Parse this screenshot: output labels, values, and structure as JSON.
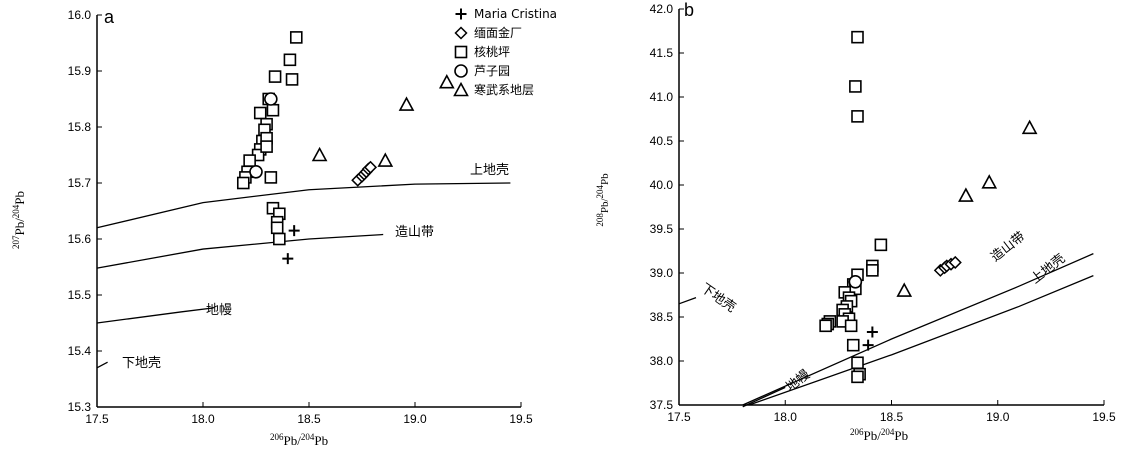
{
  "chart_data": [
    {
      "panel": "a",
      "type": "scatter",
      "xlim": [
        17.5,
        19.5
      ],
      "ylim": [
        15.3,
        16.0
      ],
      "xticks": [
        "17.5",
        "18.0",
        "18.5",
        "19.0",
        "19.5"
      ],
      "yticks": [
        "15.3",
        "15.4",
        "15.5",
        "15.6",
        "15.7",
        "15.8",
        "15.9",
        "16.0"
      ],
      "xlabel": {
        "sup1": "206",
        "mid": "Pb/",
        "sup2": "204",
        "end": "Pb"
      },
      "ylabel": {
        "sup1": "207",
        "mid": "Pb/",
        "sup2": "204",
        "end": "Pb"
      },
      "legend": [
        {
          "marker": "plus",
          "label": "Maria Cristina"
        },
        {
          "marker": "diamond",
          "label": "缅面金厂"
        },
        {
          "marker": "square",
          "label": "核桃坪"
        },
        {
          "marker": "circle",
          "label": "芦子园"
        },
        {
          "marker": "triangle",
          "label": "寒武系地层"
        }
      ],
      "curves": [
        {
          "name": "上地壳",
          "points": [
            [
              17.5,
              15.62
            ],
            [
              18.0,
              15.665
            ],
            [
              18.5,
              15.688
            ],
            [
              19.0,
              15.698
            ],
            [
              19.45,
              15.7
            ]
          ]
        },
        {
          "name": "造山带",
          "points": [
            [
              17.5,
              15.548
            ],
            [
              18.0,
              15.582
            ],
            [
              18.5,
              15.6
            ],
            [
              18.85,
              15.608
            ]
          ]
        },
        {
          "name": "地幔",
          "points": [
            [
              17.5,
              15.45
            ],
            [
              17.9,
              15.47
            ],
            [
              18.05,
              15.477
            ]
          ]
        },
        {
          "name": "下地壳",
          "points": [
            [
              17.5,
              15.37
            ],
            [
              17.55,
              15.38
            ]
          ]
        }
      ],
      "series": [
        {
          "name": "Maria Cristina",
          "marker": "plus",
          "points": [
            [
              18.43,
              15.615
            ],
            [
              18.4,
              15.565
            ]
          ]
        },
        {
          "name": "缅面金厂",
          "marker": "diamond",
          "points": [
            [
              18.73,
              15.705
            ],
            [
              18.75,
              15.712
            ],
            [
              18.76,
              15.716
            ],
            [
              18.77,
              15.72
            ],
            [
              18.78,
              15.725
            ],
            [
              18.79,
              15.728
            ]
          ]
        },
        {
          "name": "核桃坪",
          "marker": "square",
          "points": [
            [
              18.44,
              15.96
            ],
            [
              18.41,
              15.92
            ],
            [
              18.42,
              15.885
            ],
            [
              18.34,
              15.89
            ],
            [
              18.31,
              15.85
            ],
            [
              18.33,
              15.83
            ],
            [
              18.27,
              15.825
            ],
            [
              18.3,
              15.805
            ],
            [
              18.29,
              15.795
            ],
            [
              18.28,
              15.775
            ],
            [
              18.3,
              15.78
            ],
            [
              18.27,
              15.76
            ],
            [
              18.26,
              15.75
            ],
            [
              18.3,
              15.765
            ],
            [
              18.22,
              15.74
            ],
            [
              18.21,
              15.72
            ],
            [
              18.2,
              15.71
            ],
            [
              18.19,
              15.7
            ],
            [
              18.32,
              15.71
            ],
            [
              18.33,
              15.655
            ],
            [
              18.36,
              15.645
            ],
            [
              18.35,
              15.63
            ],
            [
              18.35,
              15.62
            ],
            [
              18.36,
              15.6
            ]
          ]
        },
        {
          "name": "芦子园",
          "marker": "circle",
          "points": [
            [
              18.32,
              15.85
            ],
            [
              18.25,
              15.72
            ]
          ]
        },
        {
          "name": "寒武系地层",
          "marker": "triangle",
          "points": [
            [
              19.15,
              15.88
            ],
            [
              18.96,
              15.84
            ],
            [
              18.55,
              15.75
            ],
            [
              18.86,
              15.74
            ]
          ]
        }
      ]
    },
    {
      "panel": "b",
      "type": "scatter",
      "xlim": [
        17.5,
        19.5
      ],
      "ylim": [
        37.5,
        42.0
      ],
      "xticks": [
        "17.5",
        "18.0",
        "18.5",
        "19.0",
        "19.5"
      ],
      "yticks": [
        "37.5",
        "38.0",
        "38.5",
        "39.0",
        "39.5",
        "40.0",
        "40.5",
        "41.0",
        "41.5",
        "42.0"
      ],
      "xlabel": {
        "sup1": "206",
        "mid": "Pb/",
        "sup2": "204",
        "end": "Pb"
      },
      "ylabel": {
        "sup1": "208",
        "mid": "Pb/",
        "sup2": "204",
        "end": "Pb"
      },
      "curves": [
        {
          "name": "下地壳",
          "points": [
            [
              17.5,
              38.65
            ],
            [
              17.58,
              38.72
            ]
          ]
        },
        {
          "name": "造山带",
          "points": [
            [
              17.8,
              37.5
            ],
            [
              18.5,
              38.25
            ],
            [
              19.1,
              38.85
            ],
            [
              19.45,
              39.22
            ]
          ]
        },
        {
          "name": "上地壳",
          "points": [
            [
              17.83,
              37.5
            ],
            [
              18.5,
              38.07
            ],
            [
              19.1,
              38.62
            ],
            [
              19.45,
              38.97
            ]
          ]
        },
        {
          "name": "地幔",
          "points": [
            [
              17.8,
              37.48
            ],
            [
              18.0,
              37.7
            ]
          ]
        }
      ],
      "series": [
        {
          "name": "Maria Cristina",
          "marker": "plus",
          "points": [
            [
              18.41,
              38.33
            ],
            [
              18.39,
              38.18
            ]
          ]
        },
        {
          "name": "缅面金厂",
          "marker": "diamond",
          "points": [
            [
              18.73,
              39.03
            ],
            [
              18.75,
              39.06
            ],
            [
              18.76,
              39.08
            ],
            [
              18.78,
              39.1
            ],
            [
              18.8,
              39.12
            ]
          ]
        },
        {
          "name": "核桃坪",
          "marker": "square",
          "points": [
            [
              18.34,
              41.68
            ],
            [
              18.33,
              41.12
            ],
            [
              18.34,
              40.78
            ],
            [
              18.45,
              39.32
            ],
            [
              18.41,
              39.08
            ],
            [
              18.41,
              39.03
            ],
            [
              18.34,
              38.98
            ],
            [
              18.32,
              38.87
            ],
            [
              18.33,
              38.82
            ],
            [
              18.28,
              38.78
            ],
            [
              18.3,
              38.72
            ],
            [
              18.31,
              38.68
            ],
            [
              18.29,
              38.62
            ],
            [
              18.27,
              38.58
            ],
            [
              18.28,
              38.53
            ],
            [
              18.3,
              38.48
            ],
            [
              18.27,
              38.45
            ],
            [
              18.21,
              38.45
            ],
            [
              18.2,
              38.42
            ],
            [
              18.19,
              38.4
            ],
            [
              18.31,
              38.4
            ],
            [
              18.32,
              38.18
            ],
            [
              18.34,
              37.98
            ],
            [
              18.35,
              37.85
            ],
            [
              18.34,
              37.82
            ]
          ]
        },
        {
          "name": "芦子园",
          "marker": "circle",
          "points": [
            [
              18.33,
              38.9
            ]
          ]
        },
        {
          "name": "寒武系地层",
          "marker": "triangle",
          "points": [
            [
              19.15,
              40.65
            ],
            [
              18.96,
              40.03
            ],
            [
              18.85,
              39.88
            ],
            [
              18.56,
              38.8
            ]
          ]
        }
      ]
    }
  ]
}
